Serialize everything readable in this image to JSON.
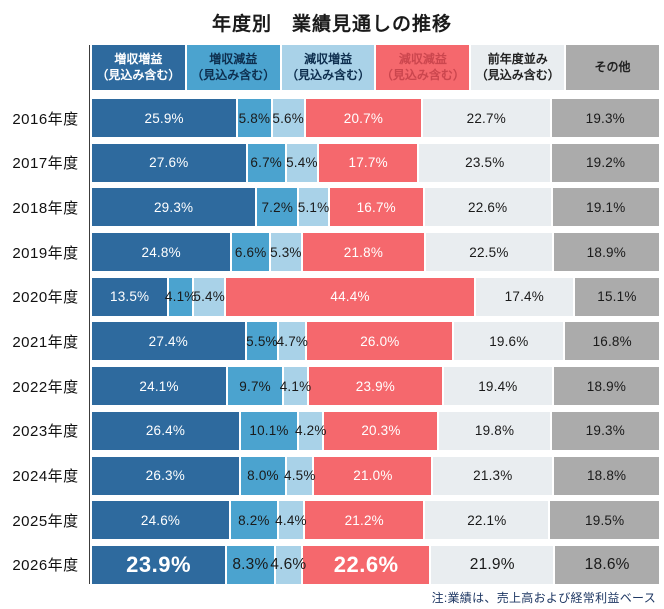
{
  "title": "年度別　業績見通しの推移",
  "note": "注:業績は、売上高および経常利益ベース",
  "chart_data": {
    "type": "bar",
    "stacked": true,
    "orientation": "horizontal",
    "unit": "%",
    "xlim": [
      0,
      100
    ],
    "grid": false,
    "legend_position": "top",
    "categories": [
      "2016年度",
      "2017年度",
      "2018年度",
      "2019年度",
      "2020年度",
      "2021年度",
      "2022年度",
      "2023年度",
      "2024年度",
      "2025年度",
      "2026年度"
    ],
    "series": [
      {
        "name": "増収増益（見込み含む）",
        "color": "#2e6a9e",
        "label_color": "#ffffff",
        "values": [
          25.9,
          27.6,
          29.3,
          24.8,
          13.5,
          27.4,
          24.1,
          26.4,
          26.3,
          24.6,
          23.9
        ]
      },
      {
        "name": "増収減益（見込み含む）",
        "color": "#4ba3cf",
        "label_color": "#1a1a1a",
        "values": [
          5.8,
          6.7,
          7.2,
          6.6,
          4.1,
          5.5,
          9.7,
          10.1,
          8.0,
          8.2,
          8.3
        ]
      },
      {
        "name": "減収増益（見込み含む）",
        "color": "#a9d2e8",
        "label_color": "#1a1a1a",
        "values": [
          5.6,
          5.4,
          5.1,
          5.3,
          5.4,
          4.7,
          4.1,
          4.2,
          4.5,
          4.4,
          4.6
        ]
      },
      {
        "name": "減収減益（見込み含む）",
        "color": "#f5686d",
        "label_color": "#ffffff",
        "values": [
          20.7,
          17.7,
          16.7,
          21.8,
          44.4,
          26.0,
          23.9,
          20.3,
          21.0,
          21.2,
          22.6
        ]
      },
      {
        "name": "前年度並み（見込み含む）",
        "color": "#e9edf0",
        "label_color": "#1a1a1a",
        "values": [
          22.7,
          23.5,
          22.6,
          22.5,
          17.4,
          19.6,
          19.4,
          19.8,
          21.3,
          22.1,
          21.9
        ]
      },
      {
        "name": "その他",
        "color": "#ababab",
        "label_color": "#1a1a1a",
        "values": [
          19.3,
          19.2,
          19.1,
          18.9,
          15.1,
          16.8,
          18.9,
          19.3,
          18.8,
          19.5,
          18.6
        ]
      }
    ],
    "legend": [
      {
        "line1": "増収増益",
        "line2": "（見込み含む）",
        "bg": "#2e6a9e",
        "fg": "#ffffff"
      },
      {
        "line1": "増収減益",
        "line2": "（見込み含む）",
        "bg": "#4ba3cf",
        "fg": "#0d2e4e"
      },
      {
        "line1": "減収増益",
        "line2": "（見込み含む）",
        "bg": "#a9d2e8",
        "fg": "#0d2e4e"
      },
      {
        "line1": "減収減益",
        "line2": "（見込み含む）",
        "bg": "#f5686d",
        "fg": "#cb464e"
      },
      {
        "line1": "前年度並み",
        "line2": "（見込み含む）",
        "bg": "#e9edf0",
        "fg": "#222222"
      },
      {
        "line1": "その他",
        "line2": "",
        "bg": "#ababab",
        "fg": "#222222"
      }
    ],
    "emphasis": {
      "row_index": 10,
      "big_segments": [
        0,
        3
      ]
    }
  }
}
